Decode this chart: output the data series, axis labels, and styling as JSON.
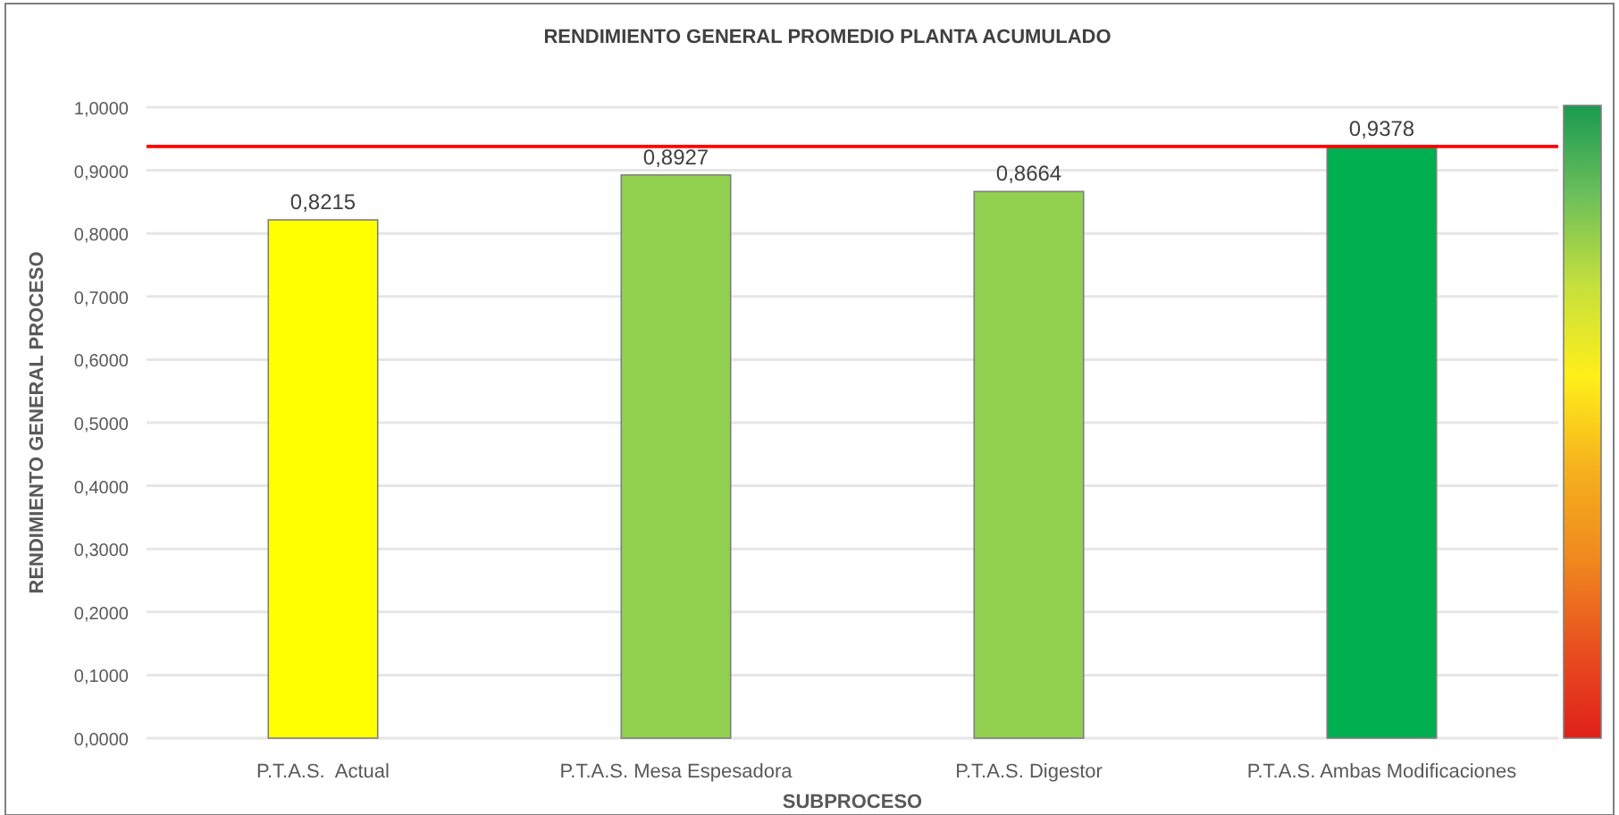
{
  "chart_data": {
    "type": "bar",
    "title": "RENDIMIENTO GENERAL PROMEDIO PLANTA ACUMULADO",
    "xlabel": "SUBPROCESO",
    "ylabel": "RENDIMIENTO GENERAL PROCESO",
    "categories": [
      "P.T.A.S.  Actual",
      "P.T.A.S. Mesa Espesadora",
      "P.T.A.S. Digestor",
      "P.T.A.S. Ambas Modificaciones"
    ],
    "values": [
      0.8215,
      0.8927,
      0.8664,
      0.9378
    ],
    "colors": [
      "#ffff00",
      "#92d050",
      "#92d050",
      "#00b050"
    ],
    "value_labels": [
      "0,8215",
      "0,8927",
      "0,8664",
      "0,9378"
    ],
    "ylim": [
      0,
      1
    ],
    "yticks": [
      {
        "value": 0,
        "label": "0,0000"
      },
      {
        "value": 0.1,
        "label": "0,1000"
      },
      {
        "value": 0.2,
        "label": "0,2000"
      },
      {
        "value": 0.3,
        "label": "0,3000"
      },
      {
        "value": 0.4,
        "label": "0,4000"
      },
      {
        "value": 0.5,
        "label": "0,5000"
      },
      {
        "value": 0.6,
        "label": "0,6000"
      },
      {
        "value": 0.7,
        "label": "0,7000"
      },
      {
        "value": 0.8,
        "label": "0,8000"
      },
      {
        "value": 0.9,
        "label": "0,9000"
      },
      {
        "value": 1,
        "label": "1,0000"
      }
    ],
    "grid": "y",
    "ref_lines": [
      {
        "axis": "y",
        "value": 0.9378,
        "color": "#ff0000"
      }
    ]
  }
}
